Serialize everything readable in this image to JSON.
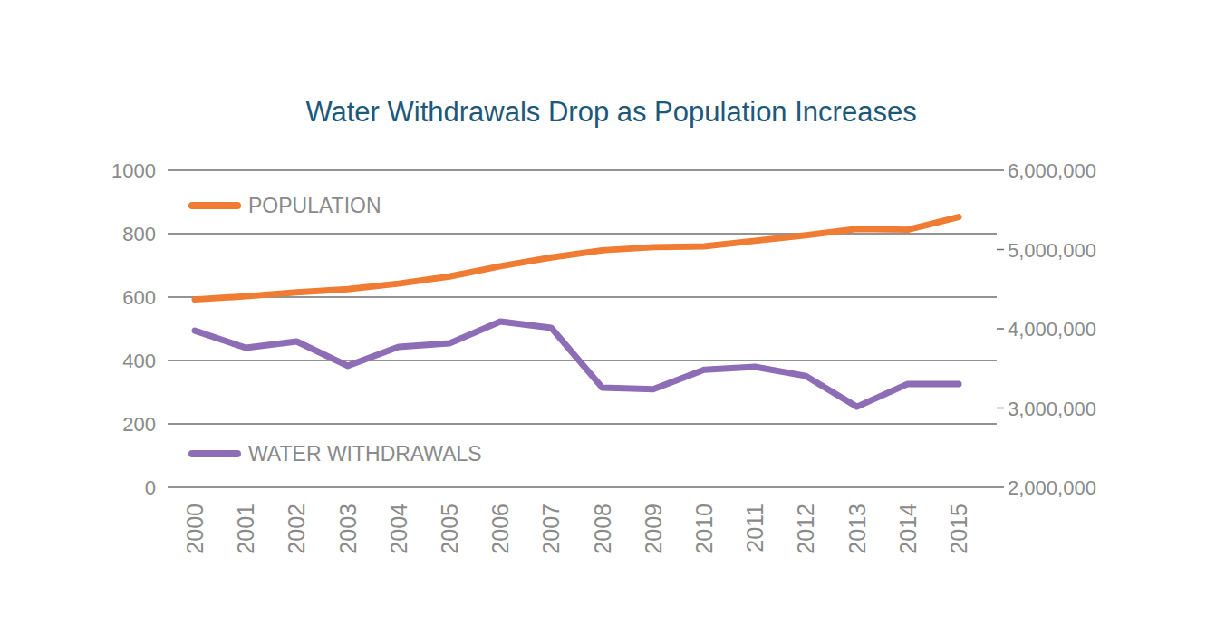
{
  "chart_data": {
    "type": "line",
    "title": "Water Withdrawals Drop as Population Increases",
    "categories": [
      "2000",
      "2001",
      "2002",
      "2003",
      "2004",
      "2005",
      "2006",
      "2007",
      "2008",
      "2009",
      "2010",
      "2011",
      "2012",
      "2013",
      "2014",
      "2015"
    ],
    "series": [
      {
        "name": "POPULATION",
        "color": "#f07c34",
        "axis": "y2",
        "values": [
          4370000,
          4410000,
          4460000,
          4500000,
          4570000,
          4660000,
          4790000,
          4900000,
          4990000,
          5030000,
          5040000,
          5110000,
          5180000,
          5260000,
          5250000,
          5410000
        ]
      },
      {
        "name": "WATER WITHDRAWALS",
        "color": "#8d6db5",
        "values": [
          494,
          440,
          460,
          383,
          443,
          454,
          523,
          503,
          314,
          309,
          371,
          380,
          351,
          254,
          326,
          326
        ]
      }
    ],
    "ylim": [
      0,
      1000
    ],
    "yticks": [
      0,
      200,
      400,
      600,
      800,
      1000
    ],
    "y2lim": [
      2000000,
      6000000
    ],
    "y2ticks": [
      {
        "value": 2000000,
        "label": "2,000,000"
      },
      {
        "value": 3000000,
        "label": "3,000,000"
      },
      {
        "value": 4000000,
        "label": "4,000,000"
      },
      {
        "value": 5000000,
        "label": "5,000,000"
      },
      {
        "value": 6000000,
        "label": "6,000,000"
      }
    ],
    "grid": true
  }
}
